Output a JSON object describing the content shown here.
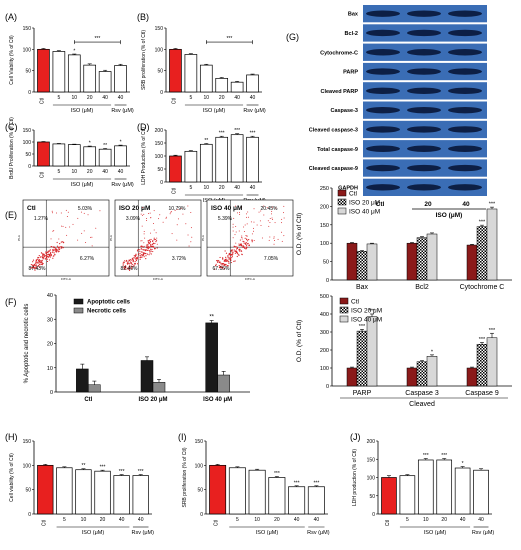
{
  "figure": {
    "colors": {
      "ctl": "#e8201f",
      "bar": "#ffffff",
      "edge": "#000000",
      "dark": "#1a1a1a",
      "gray": "#8a8a8a",
      "light": "#d8d8d8",
      "dot": "#d8262a",
      "blot_bg": "#3a6db5",
      "band": "#0d1f45"
    }
  },
  "chart_data": [
    {
      "id": "A",
      "panel_label": "(A)",
      "type": "bar",
      "ylabel": "Cell Viability (% of Ctl)",
      "ylim": [
        0,
        150
      ],
      "yticks": [
        0,
        50,
        100,
        150
      ],
      "categories": [
        "Ctl",
        "5",
        "10",
        "20",
        "40",
        "40"
      ],
      "values": [
        100,
        95,
        87,
        63,
        48,
        62
      ],
      "errors": [
        2,
        2,
        2,
        3,
        3,
        3
      ],
      "significance": [
        "",
        "",
        "*",
        "",
        "",
        ""
      ],
      "bracket": {
        "label": "***"
      },
      "groups": [
        {
          "label": "ISO (μM)"
        },
        {
          "label": "Rsv (μM)"
        }
      ]
    },
    {
      "id": "B",
      "panel_label": "(B)",
      "type": "bar",
      "ylabel": "SRB proliferation (% of Ctl)",
      "ylim": [
        0,
        150
      ],
      "yticks": [
        0,
        50,
        100,
        150
      ],
      "categories": [
        "Ctl",
        "5",
        "10",
        "20",
        "40",
        "40"
      ],
      "values": [
        100,
        88,
        63,
        32,
        23,
        40
      ],
      "errors": [
        2,
        2,
        2,
        2,
        2,
        2
      ],
      "significance": [
        "",
        "",
        "",
        "",
        "",
        ""
      ],
      "bracket": {
        "label": "***"
      },
      "groups": [
        {
          "label": "ISO (μM)"
        },
        {
          "label": "Rsv (μM)"
        }
      ]
    },
    {
      "id": "C",
      "panel_label": "(C)",
      "type": "bar",
      "ylabel": "BrdU Proliferation (% of Ctl)",
      "ylim": [
        0,
        150
      ],
      "yticks": [
        0,
        50,
        100,
        150
      ],
      "categories": [
        "Ctl",
        "5",
        "10",
        "20",
        "40",
        "40"
      ],
      "values": [
        100,
        92,
        89,
        80,
        70,
        84
      ],
      "errors": [
        2,
        2,
        2,
        3,
        3,
        3
      ],
      "significance": [
        "",
        "",
        "",
        "*",
        "**",
        "*"
      ],
      "groups": [
        {
          "label": "ISO (μM)"
        },
        {
          "label": "Rsv (μM)"
        }
      ]
    },
    {
      "id": "D",
      "panel_label": "(D)",
      "type": "bar",
      "ylabel": "LDH Production (% of Ctl)",
      "ylim": [
        0,
        200
      ],
      "yticks": [
        0,
        50,
        100,
        150,
        200
      ],
      "categories": [
        "Ctl",
        "5",
        "10",
        "20",
        "40",
        "40"
      ],
      "values": [
        100,
        118,
        145,
        172,
        182,
        172
      ],
      "errors": [
        3,
        3,
        3,
        4,
        4,
        4
      ],
      "significance": [
        "",
        "",
        "**",
        "***",
        "***",
        "***"
      ],
      "groups": [
        {
          "label": "ISO (μM)"
        },
        {
          "label": "Rsv (μM)"
        }
      ]
    },
    {
      "id": "F",
      "panel_label": "(F)",
      "type": "bar",
      "ylabel": "% Apoptotic and necrotic cells",
      "ylim": [
        0,
        40
      ],
      "yticks": [
        0,
        10,
        20,
        30,
        40
      ],
      "categories": [
        "Ctl",
        "ISO 20 μM",
        "ISO 40 μM"
      ],
      "series": [
        {
          "name": "Apoptotic cells",
          "values": [
            9.5,
            13,
            28.5
          ],
          "errors": [
            2,
            1.5,
            1
          ]
        },
        {
          "name": "Necrotic cells",
          "values": [
            3,
            4,
            7
          ],
          "errors": [
            1.5,
            1.2,
            1.5
          ]
        }
      ],
      "significance": [
        "",
        "",
        "**"
      ]
    },
    {
      "id": "G1",
      "type": "bar",
      "ylabel": "O.D. (% of Ctl)",
      "ylim": [
        0,
        250
      ],
      "yticks": [
        0,
        50,
        100,
        150,
        200,
        250
      ],
      "categories": [
        "Bax",
        "Bcl2",
        "Cytochrome C"
      ],
      "series": [
        {
          "name": "Ctl",
          "values": [
            100,
            100,
            95
          ],
          "errors": [
            2,
            2,
            2
          ]
        },
        {
          "name": "ISO 20  μM",
          "values": [
            78,
            115,
            145
          ],
          "errors": [
            2,
            3,
            4
          ]
        },
        {
          "name": "ISO 40  μM",
          "values": [
            98,
            125,
            193
          ],
          "errors": [
            2,
            3,
            5
          ]
        }
      ],
      "significance": [
        [
          "",
          "",
          ""
        ],
        [
          "",
          "",
          ""
        ],
        [
          "",
          "***",
          "***"
        ]
      ]
    },
    {
      "id": "G2",
      "type": "bar",
      "ylabel": "O.D. (% of Ctl)",
      "ylim": [
        0,
        500
      ],
      "yticks": [
        0,
        100,
        200,
        300,
        400,
        500
      ],
      "categories": [
        "PARP",
        "Caspase 3",
        "Caspase 9"
      ],
      "xgroup_label": "Cleaved",
      "series": [
        {
          "name": "Ctl",
          "values": [
            100,
            100,
            100
          ],
          "errors": [
            5,
            5,
            5
          ]
        },
        {
          "name": "ISO 20  μM",
          "values": [
            305,
            135,
            232
          ],
          "errors": [
            10,
            6,
            10
          ]
        },
        {
          "name": "ISO 40  μM",
          "values": [
            385,
            165,
            268
          ],
          "errors": [
            15,
            8,
            25
          ]
        }
      ],
      "significance": [
        [
          "",
          "***",
          "***"
        ],
        [
          "",
          "",
          "*"
        ],
        [
          "",
          "***",
          "***"
        ]
      ]
    },
    {
      "id": "H",
      "panel_label": "(H)",
      "type": "bar",
      "ylabel": "Cell viability (% of Ctl)",
      "ylim": [
        0,
        150
      ],
      "yticks": [
        0,
        50,
        100,
        150
      ],
      "categories": [
        "Ctl",
        "5",
        "10",
        "20",
        "40",
        "40"
      ],
      "values": [
        100,
        95,
        91,
        88,
        79,
        79
      ],
      "errors": [
        2,
        2,
        2,
        2,
        2,
        2
      ],
      "significance": [
        "",
        "",
        "**",
        "***",
        "***",
        "***"
      ],
      "groups": [
        {
          "label": "ISO (μM)"
        },
        {
          "label": "Rsv (μM)"
        }
      ]
    },
    {
      "id": "I",
      "panel_label": "(I)",
      "type": "bar",
      "ylabel": "SRB proliferation (% of Ctl)",
      "ylim": [
        0,
        150
      ],
      "yticks": [
        0,
        50,
        100,
        150
      ],
      "categories": [
        "Ctl",
        "5",
        "10",
        "20",
        "40",
        "40"
      ],
      "values": [
        100,
        95,
        90,
        75,
        56,
        56
      ],
      "errors": [
        2,
        2,
        2,
        2,
        2,
        2
      ],
      "significance": [
        "",
        "",
        "",
        "***",
        "***",
        "***"
      ],
      "groups": [
        {
          "label": "ISO (μM)"
        },
        {
          "label": "Rsv (μM)"
        }
      ]
    },
    {
      "id": "J",
      "panel_label": "(J)",
      "type": "bar",
      "ylabel": "LDH production (% of Ctl)",
      "ylim": [
        0,
        200
      ],
      "yticks": [
        0,
        50,
        100,
        150,
        200
      ],
      "categories": [
        "Ctl",
        "5",
        "10",
        "20",
        "40",
        "40"
      ],
      "values": [
        100,
        105,
        148,
        148,
        126,
        120
      ],
      "errors": [
        5,
        3,
        4,
        4,
        4,
        4
      ],
      "significance": [
        "",
        "",
        "***",
        "***",
        "*",
        ""
      ],
      "groups": [
        {
          "label": "ISO (μM)"
        },
        {
          "label": "Rsv (μM)"
        }
      ]
    }
  ],
  "flow": {
    "panel_label": "(E)",
    "axis_label": "PI-A",
    "x_axis_label": "FITC-A",
    "plots": [
      {
        "label": "Ctl",
        "quadrants": {
          "ul": "1.27%",
          "ur": "5.03%",
          "ll": "87.43%",
          "lr": "6.27%"
        }
      },
      {
        "label": "ISO 20 μM",
        "quadrants": {
          "ul": "3.09%",
          "ur": "10.79%",
          "ll": "82.40%",
          "lr": "3.72%"
        }
      },
      {
        "label": "ISO 40 μM",
        "quadrants": {
          "ul": "5.39%",
          "ur": "20.45%",
          "ll": "67.15%",
          "lr": "7.05%"
        }
      }
    ]
  },
  "blot": {
    "panel_label": "(G)",
    "rows": [
      "Bax",
      "Bcl-2",
      "Cytochrome-C",
      "PARP",
      "Cleaved PARP",
      "Caspase-3",
      "Cleaved caspase-3",
      "Total caspase-9",
      "Cleaved caspase-9",
      "GAPDH"
    ],
    "lanes": [
      "Ctl",
      "20",
      "40"
    ],
    "treatment_label": "ISO (μM)"
  }
}
